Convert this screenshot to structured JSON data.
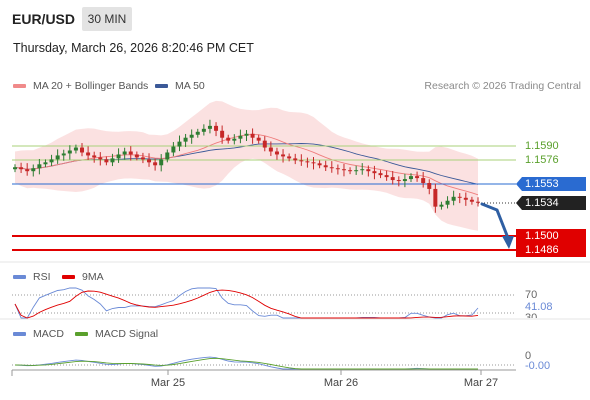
{
  "header": {
    "symbol": "EUR/USD",
    "timeframe": "30 MIN",
    "datetime": "Thursday, March 26, 2026 8:20:46 PM CET",
    "credit": "Research © 2026 Trading Central"
  },
  "colors": {
    "candle_up": "#2e7d32",
    "candle_down": "#c62828",
    "bollinger_band": "#f8c9c9",
    "ma20": "#ef7d7d",
    "ma50": "#3b5998",
    "resistance": "#9acd5a",
    "pivot": "#2a6bd1",
    "support": "#e00000",
    "arrow": "#2f5fa3",
    "rsi": "#6a8ad6",
    "signal": "#e00000",
    "macd_signal": "#5aa02c"
  },
  "legend": {
    "ma20": "MA 20 + Bollinger Bands",
    "ma50": "MA 50",
    "rsi": "RSI",
    "rsi_signal": "9MA",
    "macd": "MACD",
    "macd_signal": "MACD Signal"
  },
  "levels": {
    "r2": "1.1590",
    "r1": "1.1576",
    "pivot": "1.1553",
    "last": "1.1534",
    "s1": "1.1500",
    "s2": "1.1486"
  },
  "rsi": {
    "level_70": "70",
    "value": "41.08",
    "level_30": "30"
  },
  "macd": {
    "level_0": "0",
    "value": "-0.00"
  },
  "xaxis": {
    "labels": [
      "Mar 25",
      "Mar 26",
      "Mar 27"
    ]
  },
  "chart_data": [
    {
      "type": "candlestick",
      "title": "",
      "series": [
        {
          "name": "MA 20 + Bollinger Bands"
        },
        {
          "name": "MA 50"
        }
      ],
      "closes": [
        1.157,
        1.1568,
        1.1566,
        1.1569,
        1.1573,
        1.1575,
        1.1578,
        1.1582,
        1.1584,
        1.1587,
        1.159,
        1.1585,
        1.1582,
        1.158,
        1.1578,
        1.1575,
        1.1579,
        1.1583,
        1.1586,
        1.1583,
        1.158,
        1.1578,
        1.1575,
        1.1572,
        1.1578,
        1.1585,
        1.1591,
        1.1596,
        1.16,
        1.1603,
        1.1606,
        1.1609,
        1.1612,
        1.1607,
        1.16,
        1.1597,
        1.1599,
        1.1602,
        1.1604,
        1.16,
        1.1597,
        1.159,
        1.1586,
        1.1583,
        1.1581,
        1.1579,
        1.1577,
        1.1576,
        1.1575,
        1.1574,
        1.1572,
        1.157,
        1.1569,
        1.1568,
        1.1567,
        1.1566,
        1.1567,
        1.1568,
        1.1566,
        1.1564,
        1.1562,
        1.156,
        1.1557,
        1.1556,
        1.1558,
        1.1561,
        1.1559,
        1.1554,
        1.1548,
        1.153,
        1.1532,
        1.1536,
        1.154,
        1.1539,
        1.1537,
        1.1535,
        1.1534
      ],
      "levels": {
        "resistance": [
          1.159,
          1.1576
        ],
        "pivot": 1.1553,
        "last": 1.1534,
        "support": [
          1.15,
          1.1486
        ]
      }
    },
    {
      "type": "line",
      "title": "",
      "series": [
        {
          "name": "RSI"
        },
        {
          "name": "9MA"
        }
      ],
      "levels": [
        70,
        30
      ],
      "last": 41.08
    },
    {
      "type": "line",
      "title": "",
      "series": [
        {
          "name": "MACD"
        },
        {
          "name": "MACD Signal"
        }
      ],
      "levels": [
        0
      ],
      "last": -0.0
    }
  ]
}
